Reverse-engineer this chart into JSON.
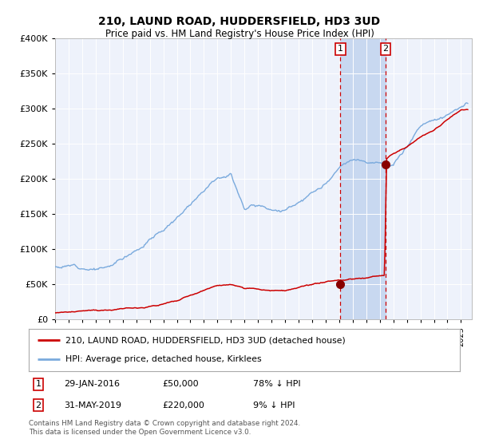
{
  "title": "210, LAUND ROAD, HUDDERSFIELD, HD3 3UD",
  "subtitle": "Price paid vs. HM Land Registry's House Price Index (HPI)",
  "legend_label_red": "210, LAUND ROAD, HUDDERSFIELD, HD3 3UD (detached house)",
  "legend_label_blue": "HPI: Average price, detached house, Kirklees",
  "annotation1_date": "29-JAN-2016",
  "annotation1_price": "£50,000",
  "annotation1_hpi": "78% ↓ HPI",
  "annotation2_date": "31-MAY-2019",
  "annotation2_price": "£220,000",
  "annotation2_hpi": "9% ↓ HPI",
  "footnote": "Contains HM Land Registry data © Crown copyright and database right 2024.\nThis data is licensed under the Open Government Licence v3.0.",
  "ylim": [
    0,
    400000
  ],
  "yticks": [
    0,
    50000,
    100000,
    150000,
    200000,
    250000,
    300000,
    350000,
    400000
  ],
  "sale1_x": 2016.08,
  "sale1_y": 50000,
  "sale2_x": 2019.42,
  "sale2_y": 220000,
  "highlight_xmin": 2016.08,
  "highlight_xmax": 2019.42,
  "vline1_x": 2016.08,
  "vline2_x": 2019.42,
  "plot_bg": "#eef2fb",
  "highlight_color": "#c8d8f0",
  "vline_color": "#cc0000",
  "red_line_color": "#cc0000",
  "blue_line_color": "#7aaadd",
  "marker_color": "#880000",
  "box_color": "#cc0000",
  "xmin": 1995.0,
  "xmax": 2025.8,
  "hpi_base_years": [
    1995,
    1999,
    2000,
    2004,
    2007,
    2008,
    2009,
    2010,
    2011,
    2012,
    2013,
    2014,
    2015,
    2016,
    2017,
    2018,
    2019,
    2020,
    2021,
    2022,
    2023,
    2024,
    2025
  ],
  "hpi_base_vals": [
    75000,
    80000,
    93000,
    155000,
    225000,
    230000,
    185000,
    190000,
    188000,
    187000,
    200000,
    210000,
    220000,
    240000,
    248000,
    248000,
    250000,
    242000,
    270000,
    300000,
    308000,
    318000,
    330000
  ],
  "red_base_years": [
    1995,
    1998,
    2001,
    2004,
    2007,
    2008,
    2009,
    2012,
    2015,
    2016.05,
    2016.15,
    2019.35,
    2019.5,
    2020,
    2021,
    2022,
    2023,
    2025
  ],
  "red_base_vals": [
    10000,
    12000,
    17000,
    28000,
    48000,
    50000,
    42000,
    40000,
    48000,
    50000,
    50000,
    55000,
    220000,
    228000,
    238000,
    252000,
    262000,
    293000
  ]
}
